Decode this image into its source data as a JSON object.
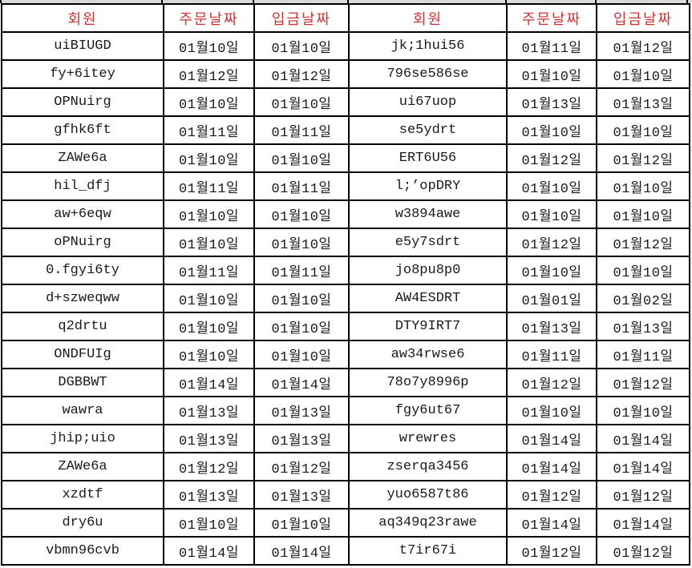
{
  "table": {
    "headers": [
      "회원",
      "주문날짜",
      "입금날짜",
      "회원",
      "주문날짜",
      "입금날짜"
    ],
    "rows": [
      [
        "uiBIUGD",
        "01월10일",
        "01월10일",
        "jk;1hui56",
        "01월11일",
        "01월12일"
      ],
      [
        "fy+6itey",
        "01월12일",
        "01월12일",
        "796se586se",
        "01월10일",
        "01월10일"
      ],
      [
        "OPNuirg",
        "01월10일",
        "01월10일",
        "ui67uop",
        "01월13일",
        "01월13일"
      ],
      [
        "gfhk6ft",
        "01월11일",
        "01월11일",
        "se5ydrt",
        "01월10일",
        "01월10일"
      ],
      [
        "ZAWe6a",
        "01월10일",
        "01월10일",
        "ERT6U56",
        "01월12일",
        "01월12일"
      ],
      [
        "hil_dfj",
        "01월11일",
        "01월11일",
        "l;’opDRY",
        "01월10일",
        "01월10일"
      ],
      [
        "aw+6eqw",
        "01월10일",
        "01월10일",
        "w3894awe",
        "01월10일",
        "01월10일"
      ],
      [
        "oPNuirg",
        "01월10일",
        "01월10일",
        "e5y7sdrt",
        "01월12일",
        "01월12일"
      ],
      [
        "0.fgyi6ty",
        "01월11일",
        "01월11일",
        "jo8pu8p0",
        "01월10일",
        "01월10일"
      ],
      [
        "d+szweqww",
        "01월10일",
        "01월10일",
        "AW4ESDRT",
        "01월01일",
        "01월02일"
      ],
      [
        "q2drtu",
        "01월10일",
        "01월10일",
        "DTY9IRT7",
        "01월13일",
        "01월13일"
      ],
      [
        "ONDFUIg",
        "01월10일",
        "01월10일",
        "aw34rwse6",
        "01월11일",
        "01월11일"
      ],
      [
        "DGBBWT",
        "01월14일",
        "01월14일",
        "78o7y8996p",
        "01월12일",
        "01월12일"
      ],
      [
        "wawra",
        "01월13일",
        "01월13일",
        "fgy6ut67",
        "01월10일",
        "01월10일"
      ],
      [
        "jhip;uio",
        "01월13일",
        "01월13일",
        "wrewres",
        "01월14일",
        "01월14일"
      ],
      [
        "ZAWe6a",
        "01월12일",
        "01월12일",
        "zserqa3456",
        "01월14일",
        "01월14일"
      ],
      [
        "xzdtf",
        "01월13일",
        "01월13일",
        "yuo6587t86",
        "01월12일",
        "01월12일"
      ],
      [
        "dry6u",
        "01월10일",
        "01월10일",
        "aq349q23rawe",
        "01월14일",
        "01월14일"
      ],
      [
        "vbmn96cvb",
        "01월14일",
        "01월14일",
        "t7ir67i",
        "01월12일",
        "01월12일"
      ]
    ]
  },
  "colors": {
    "header_text": "#cc3333",
    "border": "#000000",
    "top_strip": "#d8d8d8",
    "cell_text": "#1a1a1a"
  }
}
